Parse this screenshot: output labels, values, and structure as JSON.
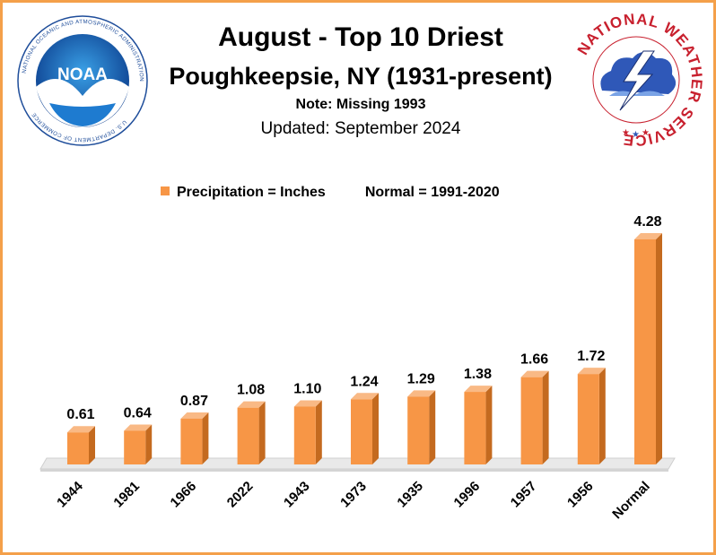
{
  "chart_data": {
    "type": "bar",
    "title": "August - Top 10 Driest",
    "subtitle": "Poughkeepsie, NY (1931-present)",
    "note": "Note: Missing 1993",
    "updated": "Updated:  September 2024",
    "legend": {
      "series_label": "Precipitation = Inches",
      "normal_label": "Normal = 1991-2020",
      "placement": "top"
    },
    "categories": [
      "1944",
      "1981",
      "1966",
      "2022",
      "1943",
      "1973",
      "1935",
      "1996",
      "1957",
      "1956",
      "Normal"
    ],
    "series": [
      {
        "name": "Precipitation = Inches",
        "values": [
          0.61,
          0.64,
          0.87,
          1.08,
          1.1,
          1.24,
          1.29,
          1.38,
          1.66,
          1.72,
          4.28
        ],
        "labels": [
          "0.61",
          "0.64",
          "0.87",
          "1.08",
          "1.10",
          "1.24",
          "1.29",
          "1.38",
          "1.66",
          "1.72",
          "4.28"
        ]
      }
    ],
    "ylim": [
      0,
      4.28
    ],
    "grid": false,
    "bar_color": "#f79646",
    "frame_color": "#f4a04a"
  },
  "logos": {
    "noaa": {
      "name": "NOAA",
      "wordmark": "NOAA",
      "ring_text": "NATIONAL OCEANIC AND ATMOSPHERIC ADMINISTRATION",
      "bottom_text": "U.S. DEPARTMENT OF COMMERCE"
    },
    "nws": {
      "name": "National Weather Service",
      "ring_text": "NATIONAL WEATHER SERVICE"
    }
  }
}
